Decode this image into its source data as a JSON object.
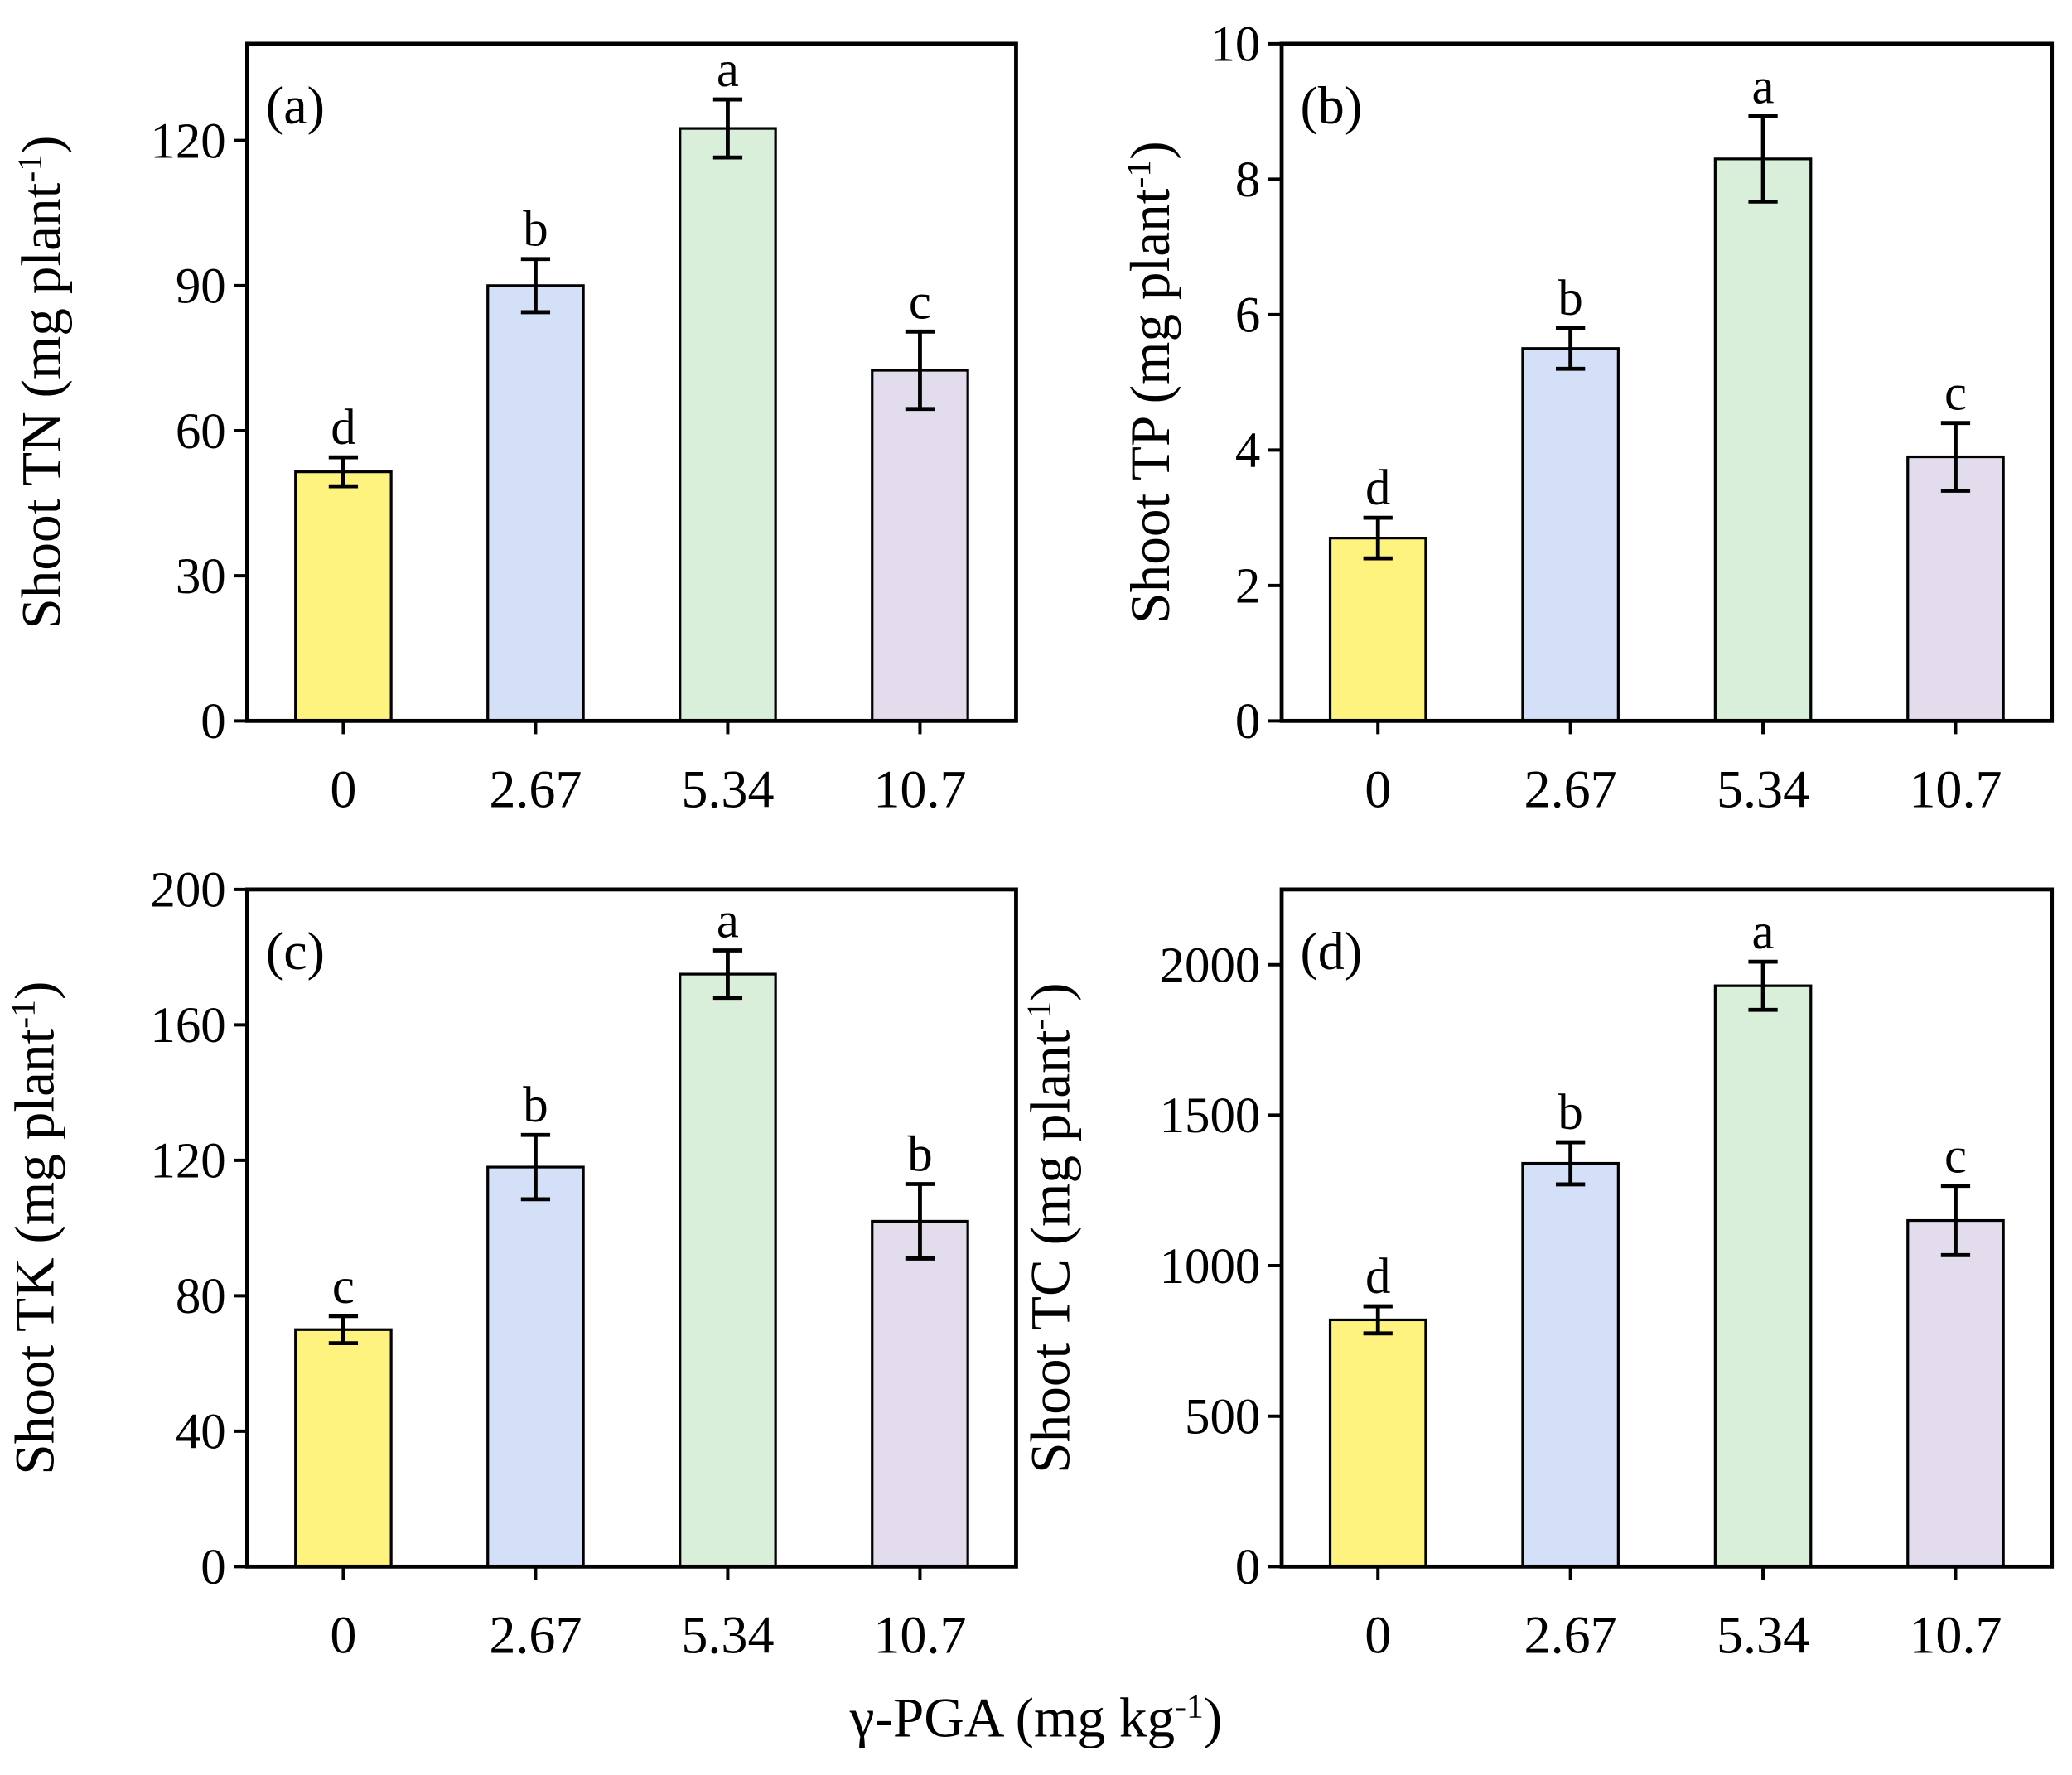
{
  "xlabel": {
    "text": "γ-PGA (mg kg",
    "sup": "-1",
    "end": ")"
  },
  "chart_data": [
    {
      "type": "bar",
      "panel_label": "(a)",
      "ylabel": {
        "text": "Shoot TN (mg plant",
        "sup": "-1",
        "end": ")"
      },
      "categories": [
        "0",
        "2.67",
        "5.34",
        "10.7"
      ],
      "values": [
        51.5,
        90,
        122.5,
        72.5
      ],
      "errors": [
        3,
        5.5,
        6,
        8
      ],
      "annotations": [
        "d",
        "b",
        "a",
        "c"
      ],
      "colors": [
        "#fff380",
        "#d3e0f7",
        "#d9efda",
        "#e2dced"
      ],
      "ylim": [
        0,
        140
      ],
      "yticks": [
        0,
        30,
        60,
        90,
        120
      ]
    },
    {
      "type": "bar",
      "panel_label": "(b)",
      "ylabel": {
        "text": "Shoot TP (mg plant",
        "sup": "-1",
        "end": ")"
      },
      "categories": [
        "0",
        "2.67",
        "5.34",
        "10.7"
      ],
      "values": [
        2.7,
        5.5,
        8.3,
        3.9
      ],
      "errors": [
        0.3,
        0.3,
        0.63,
        0.5
      ],
      "annotations": [
        "d",
        "b",
        "a",
        "c"
      ],
      "colors": [
        "#fff380",
        "#d3e0f7",
        "#d9efda",
        "#e2dced"
      ],
      "ylim": [
        0,
        10
      ],
      "yticks": [
        0,
        2,
        4,
        6,
        8,
        10
      ]
    },
    {
      "type": "bar",
      "panel_label": "(c)",
      "ylabel": {
        "text": "Shoot  TK (mg plant",
        "sup": "-1",
        "end": ")"
      },
      "categories": [
        "0",
        "2.67",
        "5.34",
        "10.7"
      ],
      "values": [
        70,
        118,
        175,
        102
      ],
      "errors": [
        4,
        9.5,
        7,
        11
      ],
      "annotations": [
        "c",
        "b",
        "a",
        "b"
      ],
      "colors": [
        "#fff380",
        "#d3e0f7",
        "#d9efda",
        "#e2dced"
      ],
      "ylim": [
        0,
        200
      ],
      "yticks": [
        0,
        40,
        80,
        120,
        160,
        200
      ]
    },
    {
      "type": "bar",
      "panel_label": "(d)",
      "ylabel": {
        "text": "Shoot TC (mg plant",
        "sup": "-1",
        "end": ")"
      },
      "categories": [
        "0",
        "2.67",
        "5.34",
        "10.7"
      ],
      "values": [
        820,
        1340,
        1930,
        1150
      ],
      "errors": [
        45,
        70,
        80,
        115
      ],
      "annotations": [
        "d",
        "b",
        "a",
        "c"
      ],
      "colors": [
        "#fff380",
        "#d3e0f7",
        "#d9efda",
        "#e2dced"
      ],
      "ylim": [
        0,
        2250
      ],
      "yticks": [
        0,
        500,
        1000,
        1500,
        2000
      ]
    }
  ]
}
